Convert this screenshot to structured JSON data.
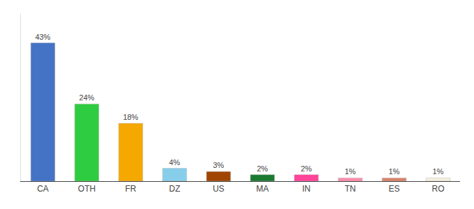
{
  "chart_data": {
    "type": "bar",
    "categories": [
      "CA",
      "OTH",
      "FR",
      "DZ",
      "US",
      "MA",
      "IN",
      "TN",
      "ES",
      "RO"
    ],
    "values": [
      43,
      24,
      18,
      4,
      3,
      2,
      2,
      1,
      1,
      1
    ],
    "value_labels": [
      "43%",
      "24%",
      "18%",
      "4%",
      "3%",
      "2%",
      "2%",
      "1%",
      "1%",
      "1%"
    ],
    "data_labels": true,
    "colors": [
      "#4472C4",
      "#2ECC40",
      "#F5A800",
      "#87CEEB",
      "#A04500",
      "#1A7A30",
      "#FF4499",
      "#FF8BAA",
      "#D9826A",
      "#F5F0DC"
    ],
    "ylim": [
      0,
      52
    ],
    "grid": false,
    "tick_labels": "x"
  }
}
